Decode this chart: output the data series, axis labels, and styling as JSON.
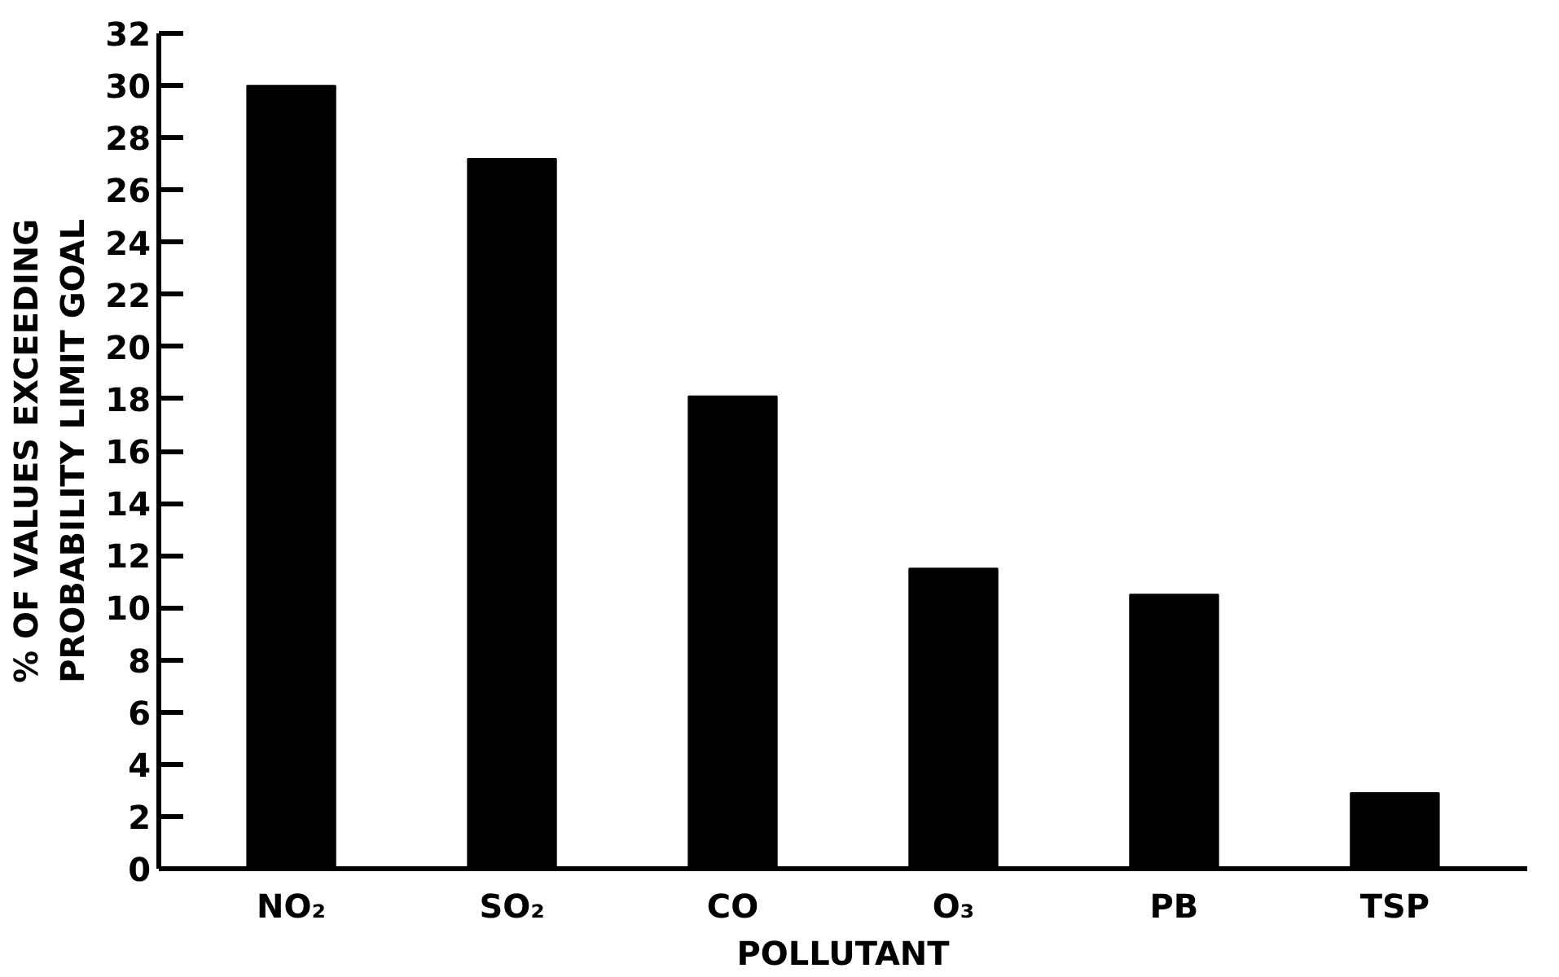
{
  "chart_data": {
    "type": "bar",
    "xlabel": "POLLUTANT",
    "ylabel": "% OF VALUES EXCEEDING\nPROBABILITY LIMIT GOAL",
    "categories": [
      "NO₂",
      "SO₂",
      "CO",
      "O₃",
      "PB",
      "TSP"
    ],
    "values": [
      30,
      27.2,
      18.1,
      11.5,
      10.5,
      2.9
    ],
    "color": "#000000",
    "ylim": [
      0,
      32
    ],
    "yticks": [
      0,
      2,
      4,
      6,
      8,
      10,
      12,
      14,
      16,
      18,
      20,
      22,
      24,
      26,
      28,
      30,
      32
    ],
    "grid": false
  }
}
